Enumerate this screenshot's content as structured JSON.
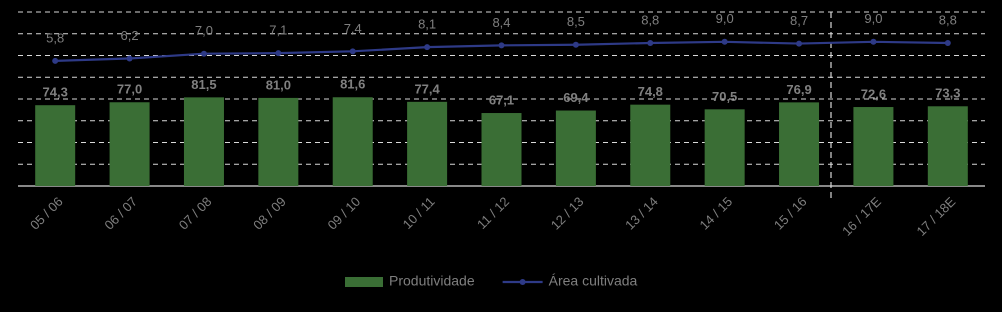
{
  "chart_data": {
    "type": "combo",
    "categories": [
      "05 / 06",
      "06 / 07",
      "07 / 08",
      "08 / 09",
      "09 / 10",
      "10 / 11",
      "11 / 12",
      "12 / 13",
      "13 / 14",
      "14 / 15",
      "15 / 16",
      "16 / 17E",
      "17 / 18E"
    ],
    "series": [
      {
        "name": "Produtividade",
        "type": "bar",
        "color": "#3a6e35",
        "values": [
          74.3,
          77.0,
          81.5,
          81.0,
          81.6,
          77.4,
          67.1,
          69.4,
          74.8,
          70.5,
          76.9,
          72.6,
          73.3
        ],
        "value_labels": [
          "74,3",
          "77,0",
          "81,5",
          "81,0",
          "81,6",
          "77,4",
          "67,1",
          "69,4",
          "74,8",
          "70,5",
          "76,9",
          "72,6",
          "73,3"
        ]
      },
      {
        "name": "Área cultivada",
        "type": "line",
        "axis": "y2",
        "color": "#2e3a87",
        "values": [
          5.8,
          6.2,
          7.0,
          7.1,
          7.4,
          8.1,
          8.4,
          8.5,
          8.8,
          9.0,
          8.7,
          9.0,
          8.8
        ],
        "value_labels": [
          "5,8",
          "6,2",
          "7,0",
          "7,1",
          "7,4",
          "8,1",
          "8,4",
          "8,5",
          "8,8",
          "9,0",
          "8,7",
          "9,0",
          "8,8"
        ]
      }
    ],
    "ylim": [
      0,
      160
    ],
    "yticks": [
      0,
      20,
      40,
      60,
      80,
      100,
      120,
      140,
      160
    ],
    "y2lim": [
      -15.2,
      14
    ],
    "grid": true,
    "legend": "bottom"
  }
}
